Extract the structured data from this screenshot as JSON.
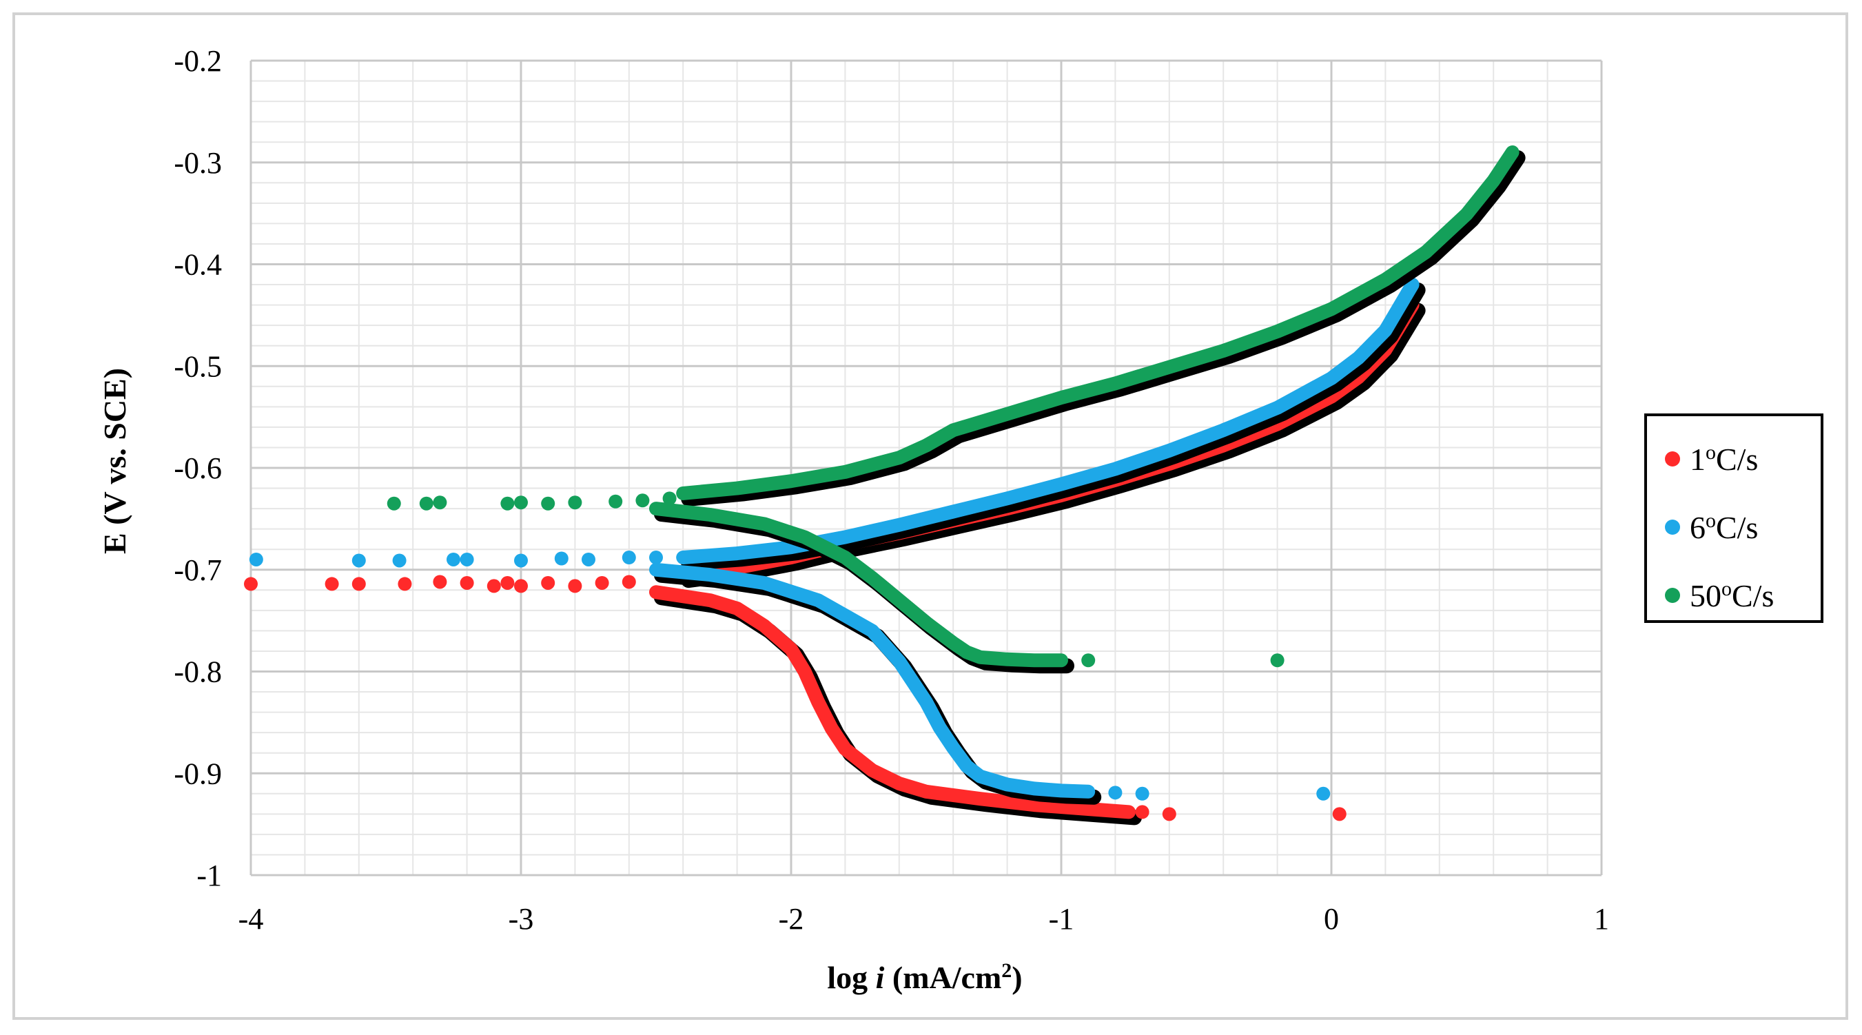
{
  "chart_data": {
    "type": "scatter",
    "title": "",
    "xlabel": {
      "pre": "log ",
      "italic": "i",
      "post": " (mA/cm",
      "sup": "2",
      "close": ")"
    },
    "ylabel": "E (V vs. SCE)",
    "xlim": [
      -4,
      1
    ],
    "ylim": [
      -1,
      -0.2
    ],
    "x_ticks": [
      -4,
      -3,
      -2,
      -1,
      0,
      1
    ],
    "y_ticks": [
      -0.2,
      -0.3,
      -0.4,
      -0.5,
      -0.6,
      -0.7,
      -0.8,
      -0.9,
      -1
    ],
    "x_tick_labels": [
      "-4",
      "-3",
      "-2",
      "-1",
      "0",
      "1"
    ],
    "y_tick_labels": [
      "-0.2",
      "-0.3",
      "-0.4",
      "-0.5",
      "-0.6",
      "-0.7",
      "-0.8",
      "-0.9",
      "-1"
    ],
    "grid": true,
    "legend_position": "right",
    "series": [
      {
        "name": "1ºC/s",
        "legend": {
          "pre": "1",
          "sup": "o",
          "post": "C/s"
        },
        "color": "#ff2a2a",
        "anodic": [
          [
            -2.4,
            -0.705
          ],
          [
            -2.2,
            -0.698
          ],
          [
            -2.0,
            -0.688
          ],
          [
            -1.8,
            -0.675
          ],
          [
            -1.6,
            -0.664
          ],
          [
            -1.4,
            -0.652
          ],
          [
            -1.2,
            -0.64
          ],
          [
            -1.0,
            -0.627
          ],
          [
            -0.8,
            -0.612
          ],
          [
            -0.6,
            -0.596
          ],
          [
            -0.4,
            -0.578
          ],
          [
            -0.2,
            -0.557
          ],
          [
            0.0,
            -0.53
          ],
          [
            0.1,
            -0.511
          ],
          [
            0.2,
            -0.484
          ],
          [
            0.3,
            -0.44
          ]
        ],
        "cathodic": [
          [
            -2.5,
            -0.722
          ],
          [
            -2.3,
            -0.73
          ],
          [
            -2.2,
            -0.738
          ],
          [
            -2.1,
            -0.755
          ],
          [
            -2.0,
            -0.778
          ],
          [
            -1.95,
            -0.8
          ],
          [
            -1.9,
            -0.83
          ],
          [
            -1.85,
            -0.856
          ],
          [
            -1.8,
            -0.876
          ],
          [
            -1.7,
            -0.897
          ],
          [
            -1.6,
            -0.91
          ],
          [
            -1.5,
            -0.918
          ],
          [
            -1.3,
            -0.925
          ],
          [
            -1.1,
            -0.931
          ],
          [
            -0.9,
            -0.935
          ],
          [
            -0.75,
            -0.938
          ]
        ],
        "scatter": [
          [
            -4.0,
            -0.714
          ],
          [
            -3.7,
            -0.714
          ],
          [
            -3.6,
            -0.714
          ],
          [
            -3.43,
            -0.714
          ],
          [
            -3.3,
            -0.712
          ],
          [
            -3.2,
            -0.713
          ],
          [
            -3.1,
            -0.716
          ],
          [
            -3.05,
            -0.713
          ],
          [
            -3.0,
            -0.716
          ],
          [
            -2.9,
            -0.713
          ],
          [
            -2.8,
            -0.716
          ],
          [
            -2.7,
            -0.713
          ],
          [
            -2.6,
            -0.712
          ],
          [
            -0.7,
            -0.938
          ],
          [
            -0.6,
            -0.94
          ],
          [
            0.03,
            -0.94
          ]
        ]
      },
      {
        "name": "6ºC/s",
        "legend": {
          "pre": "6",
          "sup": "o",
          "post": "C/s"
        },
        "color": "#1ea8e8",
        "anodic": [
          [
            -2.4,
            -0.688
          ],
          [
            -2.2,
            -0.684
          ],
          [
            -2.0,
            -0.678
          ],
          [
            -1.8,
            -0.668
          ],
          [
            -1.6,
            -0.656
          ],
          [
            -1.4,
            -0.643
          ],
          [
            -1.2,
            -0.63
          ],
          [
            -1.0,
            -0.616
          ],
          [
            -0.8,
            -0.601
          ],
          [
            -0.6,
            -0.583
          ],
          [
            -0.4,
            -0.563
          ],
          [
            -0.2,
            -0.541
          ],
          [
            0.0,
            -0.512
          ],
          [
            0.1,
            -0.492
          ],
          [
            0.2,
            -0.465
          ],
          [
            0.3,
            -0.42
          ]
        ],
        "cathodic": [
          [
            -2.5,
            -0.7
          ],
          [
            -2.3,
            -0.705
          ],
          [
            -2.1,
            -0.713
          ],
          [
            -1.9,
            -0.73
          ],
          [
            -1.7,
            -0.76
          ],
          [
            -1.6,
            -0.79
          ],
          [
            -1.5,
            -0.83
          ],
          [
            -1.45,
            -0.855
          ],
          [
            -1.4,
            -0.875
          ],
          [
            -1.35,
            -0.893
          ],
          [
            -1.3,
            -0.903
          ],
          [
            -1.2,
            -0.911
          ],
          [
            -1.1,
            -0.915
          ],
          [
            -1.0,
            -0.917
          ],
          [
            -0.9,
            -0.918
          ]
        ],
        "scatter": [
          [
            -3.98,
            -0.69
          ],
          [
            -3.6,
            -0.691
          ],
          [
            -3.45,
            -0.691
          ],
          [
            -3.25,
            -0.69
          ],
          [
            -3.2,
            -0.69
          ],
          [
            -3.0,
            -0.691
          ],
          [
            -2.85,
            -0.689
          ],
          [
            -2.75,
            -0.69
          ],
          [
            -2.6,
            -0.688
          ],
          [
            -2.5,
            -0.688
          ],
          [
            -0.8,
            -0.919
          ],
          [
            -0.7,
            -0.92
          ],
          [
            -0.03,
            -0.92
          ]
        ]
      },
      {
        "name": "50ºC/s",
        "legend": {
          "pre": "50",
          "sup": "o",
          "post": "C/s"
        },
        "color": "#14a05a",
        "anodic": [
          [
            -2.4,
            -0.625
          ],
          [
            -2.2,
            -0.62
          ],
          [
            -2.0,
            -0.613
          ],
          [
            -1.8,
            -0.604
          ],
          [
            -1.6,
            -0.59
          ],
          [
            -1.5,
            -0.578
          ],
          [
            -1.4,
            -0.563
          ],
          [
            -1.2,
            -0.547
          ],
          [
            -1.0,
            -0.531
          ],
          [
            -0.8,
            -0.517
          ],
          [
            -0.6,
            -0.501
          ],
          [
            -0.4,
            -0.485
          ],
          [
            -0.2,
            -0.466
          ],
          [
            0.0,
            -0.444
          ],
          [
            0.2,
            -0.415
          ],
          [
            0.35,
            -0.388
          ],
          [
            0.5,
            -0.351
          ],
          [
            0.6,
            -0.318
          ],
          [
            0.67,
            -0.29
          ]
        ],
        "cathodic": [
          [
            -2.5,
            -0.64
          ],
          [
            -2.3,
            -0.646
          ],
          [
            -2.1,
            -0.655
          ],
          [
            -1.95,
            -0.668
          ],
          [
            -1.8,
            -0.688
          ],
          [
            -1.7,
            -0.708
          ],
          [
            -1.6,
            -0.73
          ],
          [
            -1.5,
            -0.752
          ],
          [
            -1.4,
            -0.772
          ],
          [
            -1.35,
            -0.781
          ],
          [
            -1.3,
            -0.786
          ],
          [
            -1.2,
            -0.788
          ],
          [
            -1.1,
            -0.789
          ],
          [
            -1.0,
            -0.789
          ]
        ],
        "scatter": [
          [
            -3.47,
            -0.635
          ],
          [
            -3.35,
            -0.635
          ],
          [
            -3.3,
            -0.634
          ],
          [
            -3.05,
            -0.635
          ],
          [
            -3.0,
            -0.634
          ],
          [
            -2.9,
            -0.635
          ],
          [
            -2.8,
            -0.634
          ],
          [
            -2.65,
            -0.633
          ],
          [
            -2.55,
            -0.632
          ],
          [
            -2.45,
            -0.63
          ],
          [
            -0.9,
            -0.789
          ],
          [
            -0.2,
            -0.789
          ]
        ]
      }
    ]
  }
}
